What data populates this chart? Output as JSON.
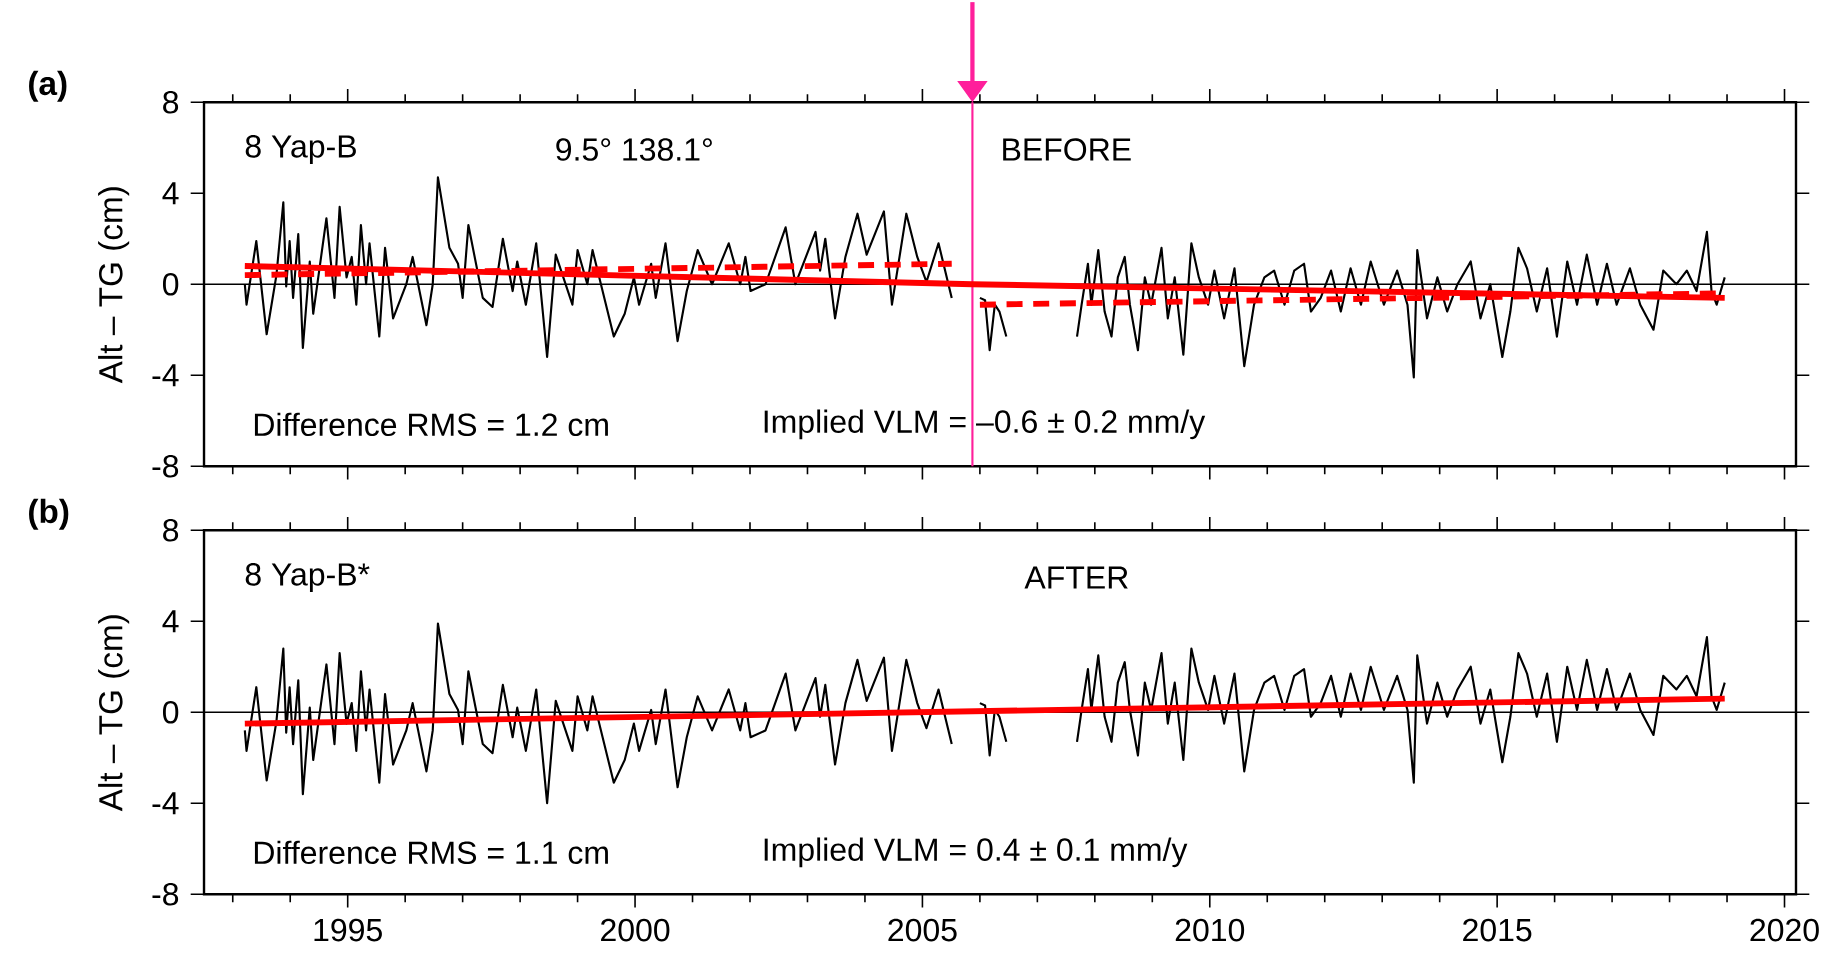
{
  "chart_data": [
    {
      "type": "line",
      "title": "(a)",
      "ylabel": "Alt – TG (cm)",
      "xlim": [
        1992.5,
        2020.2
      ],
      "ylim": [
        -8,
        8
      ],
      "tick_labels": "y",
      "marker": "none",
      "xticks": [
        {
          "value": 1993,
          "label": null
        },
        {
          "value": 1994,
          "label": null
        },
        1995,
        {
          "value": 1996,
          "label": null
        },
        {
          "value": 1997,
          "label": null
        },
        {
          "value": 1998,
          "label": null
        },
        {
          "value": 1999,
          "label": null
        },
        2000,
        {
          "value": 2001,
          "label": null
        },
        {
          "value": 2002,
          "label": null
        },
        {
          "value": 2003,
          "label": null
        },
        {
          "value": 2004,
          "label": null
        },
        2005,
        {
          "value": 2006,
          "label": null
        },
        {
          "value": 2007,
          "label": null
        },
        {
          "value": 2008,
          "label": null
        },
        {
          "value": 2009,
          "label": null
        },
        2010,
        {
          "value": 2011,
          "label": null
        },
        {
          "value": 2012,
          "label": null
        },
        {
          "value": 2013,
          "label": null
        },
        {
          "value": 2014,
          "label": null
        },
        2015,
        {
          "value": 2016,
          "label": null
        },
        {
          "value": 2017,
          "label": null
        },
        {
          "value": 2018,
          "label": null
        },
        {
          "value": 2019,
          "label": null
        },
        2020
      ],
      "yticks": [
        -8,
        -4,
        0,
        4,
        8
      ],
      "annotations": [
        "8 Yap-B",
        "9.5°  138.1°",
        "BEFORE",
        "Difference RMS =  1.2 cm",
        "Implied VLM = –0.6 ± 0.2 mm/y"
      ],
      "ref_lines": [
        {
          "axis": "y",
          "value": 0,
          "color": "#000000"
        },
        {
          "axis": "x",
          "value": 2005.87,
          "color": "#ff1f9b"
        }
      ],
      "series": [
        {
          "type": "line",
          "color": "#000000",
          "line_style": "solid",
          "x": [
            1993.21,
            1993.24,
            1993.41,
            1993.59,
            1993.76,
            1993.88,
            1993.93,
            1993.99,
            1994.05,
            1994.14,
            1994.22,
            1994.34,
            1994.4,
            1994.63,
            1994.77,
            1994.86,
            1994.98,
            1995.07,
            1995.15,
            1995.23,
            1995.32,
            1995.38,
            1995.55,
            1995.65,
            1995.79,
            1996.02,
            1996.13,
            1996.37,
            1996.48,
            1996.57,
            1996.77,
            1996.92,
            1997.0,
            1997.1,
            1997.35,
            1997.52,
            1997.7,
            1997.87,
            1997.95,
            1998.1,
            1998.28,
            1998.47,
            1998.62,
            1998.91,
            1999.0,
            1999.17,
            1999.26,
            1999.63,
            1999.82,
            1999.98,
            2000.07,
            2000.28,
            2000.36,
            2000.53,
            2000.74,
            2000.9,
            2001.09,
            2001.34,
            2001.63,
            2001.83,
            2001.92,
            2002.01,
            2002.27,
            2002.62,
            2002.79,
            2003.14,
            2003.22,
            2003.31,
            2003.48,
            2003.66,
            2003.87,
            2004.03,
            2004.33,
            2004.47,
            2004.72,
            2004.91,
            2005.07,
            2005.28,
            2005.51,
            2005.75,
            2006.0,
            2006.09,
            2006.17,
            2006.26,
            2006.34,
            2006.46,
            2007.0,
            2007.69,
            2007.77,
            2007.88,
            2007.94,
            2008.06,
            2008.17,
            2008.29,
            2008.4,
            2008.52,
            2008.61,
            2008.75,
            2008.87,
            2008.98,
            2009.16,
            2009.27,
            2009.39,
            2009.54,
            2009.68,
            2009.81,
            2009.97,
            2010.08,
            2010.25,
            2010.43,
            2010.6,
            2010.77,
            2010.95,
            2011.12,
            2011.3,
            2011.47,
            2011.64,
            2011.76,
            2011.93,
            2012.11,
            2012.28,
            2012.45,
            2012.63,
            2012.8,
            2013.03,
            2013.26,
            2013.44,
            2013.55,
            2013.61,
            2013.78,
            2013.96,
            2014.13,
            2014.31,
            2014.54,
            2014.71,
            2014.88,
            2015.09,
            2015.23,
            2015.37,
            2015.52,
            2015.69,
            2015.87,
            2016.04,
            2016.22,
            2016.39,
            2016.56,
            2016.74,
            2016.91,
            2017.08,
            2017.31,
            2017.49,
            2017.72,
            2017.89,
            2018.12,
            2018.3,
            2018.47,
            2018.65,
            2018.73,
            2018.82,
            2018.96
          ],
          "values": [
            0.0,
            -0.9,
            1.9,
            -2.2,
            0.4,
            3.6,
            -0.1,
            1.9,
            -0.6,
            2.2,
            -2.8,
            1.0,
            -1.3,
            2.9,
            -0.6,
            3.4,
            0.3,
            1.2,
            -0.9,
            2.6,
            0.0,
            1.8,
            -2.3,
            1.6,
            -1.5,
            0.0,
            1.2,
            -1.8,
            0.0,
            4.7,
            1.6,
            0.9,
            -0.6,
            2.6,
            -0.6,
            -1.0,
            2.0,
            -0.3,
            1.0,
            -0.9,
            1.8,
            -3.2,
            1.3,
            -0.9,
            1.5,
            0.0,
            1.5,
            -2.3,
            -1.3,
            0.3,
            -0.9,
            0.9,
            -0.6,
            1.8,
            -2.5,
            -0.3,
            1.5,
            0.0,
            1.8,
            0.0,
            1.2,
            -0.3,
            0.0,
            2.5,
            0.0,
            2.3,
            0.6,
            2.0,
            -1.5,
            1.2,
            3.1,
            1.3,
            3.2,
            -0.9,
            3.1,
            1.2,
            0.1,
            1.8,
            -0.6,
            null,
            -0.6,
            -0.7,
            -2.9,
            -0.9,
            -1.2,
            -2.3,
            null,
            -2.3,
            -0.9,
            0.9,
            -0.9,
            1.5,
            -1.2,
            -2.3,
            0.3,
            1.2,
            -0.9,
            -2.9,
            0.3,
            -0.9,
            1.6,
            -1.5,
            0.3,
            -3.1,
            1.8,
            0.3,
            -0.9,
            0.6,
            -1.5,
            0.7,
            -3.6,
            -0.9,
            0.3,
            0.6,
            -0.9,
            0.6,
            0.9,
            -1.2,
            -0.6,
            0.6,
            -1.2,
            0.7,
            -0.9,
            1.0,
            -0.9,
            0.6,
            -0.9,
            -4.1,
            1.5,
            -1.5,
            0.3,
            -1.2,
            0.0,
            1.0,
            -1.5,
            0.0,
            -3.2,
            -1.2,
            1.6,
            0.7,
            -1.2,
            0.7,
            -2.3,
            1.0,
            -0.9,
            1.3,
            -0.9,
            0.9,
            -0.9,
            0.7,
            -0.9,
            -2.0,
            0.6,
            0.0,
            0.6,
            -0.3,
            2.3,
            -0.3,
            -0.9,
            0.3
          ]
        },
        {
          "type": "line",
          "color": "#ff0000",
          "line_style": "solid",
          "x": [
            1993.21,
            2005.87,
            2018.96
          ],
          "values": [
            0.8,
            0.0,
            -0.6
          ]
        },
        {
          "type": "line",
          "color": "#ff0000",
          "line_style": "dashed",
          "x": [
            1993.21,
            2005.51,
            2005.75,
            2006.0,
            2018.96
          ],
          "values": [
            0.4,
            0.9,
            null,
            -0.9,
            -0.4
          ]
        }
      ]
    },
    {
      "type": "line",
      "title": "(b)",
      "ylabel": "Alt – TG (cm)",
      "xlim": [
        1992.5,
        2020.2
      ],
      "ylim": [
        -8,
        8
      ],
      "marker": "none",
      "xticks": [
        {
          "value": 1993,
          "label": null
        },
        {
          "value": 1994,
          "label": null
        },
        1995,
        {
          "value": 1996,
          "label": null
        },
        {
          "value": 1997,
          "label": null
        },
        {
          "value": 1998,
          "label": null
        },
        {
          "value": 1999,
          "label": null
        },
        2000,
        {
          "value": 2001,
          "label": null
        },
        {
          "value": 2002,
          "label": null
        },
        {
          "value": 2003,
          "label": null
        },
        {
          "value": 2004,
          "label": null
        },
        2005,
        {
          "value": 2006,
          "label": null
        },
        {
          "value": 2007,
          "label": null
        },
        {
          "value": 2008,
          "label": null
        },
        {
          "value": 2009,
          "label": null
        },
        2010,
        {
          "value": 2011,
          "label": null
        },
        {
          "value": 2012,
          "label": null
        },
        {
          "value": 2013,
          "label": null
        },
        {
          "value": 2014,
          "label": null
        },
        2015,
        {
          "value": 2016,
          "label": null
        },
        {
          "value": 2017,
          "label": null
        },
        {
          "value": 2018,
          "label": null
        },
        {
          "value": 2019,
          "label": null
        },
        2020
      ],
      "yticks": [
        -8,
        -4,
        0,
        4,
        8
      ],
      "annotations": [
        "8 Yap-B*",
        "AFTER",
        "Difference RMS =  1.1 cm",
        "Implied VLM =  0.4 ± 0.1 mm/y"
      ],
      "ref_lines": [
        {
          "axis": "y",
          "value": 0,
          "color": "#000000"
        }
      ],
      "series": [
        {
          "type": "line",
          "color": "#000000",
          "line_style": "solid",
          "x": [
            1993.21,
            1993.24,
            1993.41,
            1993.59,
            1993.76,
            1993.88,
            1993.93,
            1993.99,
            1994.05,
            1994.14,
            1994.22,
            1994.34,
            1994.4,
            1994.63,
            1994.77,
            1994.86,
            1994.98,
            1995.07,
            1995.15,
            1995.23,
            1995.32,
            1995.38,
            1995.55,
            1995.65,
            1995.79,
            1996.02,
            1996.13,
            1996.37,
            1996.48,
            1996.57,
            1996.77,
            1996.92,
            1997.0,
            1997.1,
            1997.35,
            1997.52,
            1997.7,
            1997.87,
            1997.95,
            1998.1,
            1998.28,
            1998.47,
            1998.62,
            1998.91,
            1999.0,
            1999.17,
            1999.26,
            1999.63,
            1999.82,
            1999.98,
            2000.07,
            2000.28,
            2000.36,
            2000.53,
            2000.74,
            2000.9,
            2001.09,
            2001.34,
            2001.63,
            2001.83,
            2001.92,
            2002.01,
            2002.27,
            2002.62,
            2002.79,
            2003.14,
            2003.22,
            2003.31,
            2003.48,
            2003.66,
            2003.87,
            2004.03,
            2004.33,
            2004.47,
            2004.72,
            2004.91,
            2005.07,
            2005.28,
            2005.51,
            2005.75,
            2006.0,
            2006.09,
            2006.17,
            2006.26,
            2006.34,
            2006.46,
            2007.0,
            2007.69,
            2007.77,
            2007.88,
            2007.94,
            2008.06,
            2008.17,
            2008.29,
            2008.4,
            2008.52,
            2008.61,
            2008.75,
            2008.87,
            2008.98,
            2009.16,
            2009.27,
            2009.39,
            2009.54,
            2009.68,
            2009.81,
            2009.97,
            2010.08,
            2010.25,
            2010.43,
            2010.6,
            2010.77,
            2010.95,
            2011.12,
            2011.3,
            2011.47,
            2011.64,
            2011.76,
            2011.93,
            2012.11,
            2012.28,
            2012.45,
            2012.63,
            2012.8,
            2013.03,
            2013.26,
            2013.44,
            2013.55,
            2013.61,
            2013.78,
            2013.96,
            2014.13,
            2014.31,
            2014.54,
            2014.71,
            2014.88,
            2015.09,
            2015.23,
            2015.37,
            2015.52,
            2015.69,
            2015.87,
            2016.04,
            2016.22,
            2016.39,
            2016.56,
            2016.74,
            2016.91,
            2017.08,
            2017.31,
            2017.49,
            2017.72,
            2017.89,
            2018.12,
            2018.3,
            2018.47,
            2018.65,
            2018.73,
            2018.82,
            2018.96
          ],
          "values": [
            -0.8,
            -1.7,
            1.1,
            -3.0,
            -0.4,
            2.8,
            -0.9,
            1.1,
            -1.4,
            1.4,
            -3.6,
            0.2,
            -2.1,
            2.1,
            -1.4,
            2.6,
            -0.5,
            0.4,
            -1.7,
            1.8,
            -0.8,
            1.0,
            -3.1,
            0.8,
            -2.3,
            -0.8,
            0.4,
            -2.6,
            -0.8,
            3.9,
            0.8,
            0.1,
            -1.4,
            1.8,
            -1.4,
            -1.8,
            1.2,
            -1.1,
            0.2,
            -1.7,
            1.0,
            -4.0,
            0.5,
            -1.7,
            0.7,
            -0.8,
            0.7,
            -3.1,
            -2.1,
            -0.5,
            -1.7,
            0.1,
            -1.4,
            1.0,
            -3.3,
            -1.1,
            0.7,
            -0.8,
            1.0,
            -0.8,
            0.4,
            -1.1,
            -0.8,
            1.7,
            -0.8,
            1.5,
            -0.2,
            1.2,
            -2.3,
            0.4,
            2.3,
            0.5,
            2.4,
            -1.7,
            2.3,
            0.4,
            -0.7,
            1.0,
            -1.4,
            null,
            0.4,
            0.3,
            -1.9,
            0.1,
            -0.2,
            -1.3,
            null,
            -1.3,
            0.1,
            1.9,
            0.1,
            2.5,
            -0.2,
            -1.3,
            1.3,
            2.2,
            0.1,
            -1.9,
            1.3,
            0.1,
            2.6,
            -0.5,
            1.3,
            -2.1,
            2.8,
            1.3,
            0.1,
            1.6,
            -0.5,
            1.7,
            -2.6,
            0.1,
            1.3,
            1.6,
            0.1,
            1.6,
            1.9,
            -0.2,
            0.4,
            1.6,
            -0.2,
            1.7,
            0.1,
            2.0,
            0.1,
            1.6,
            0.1,
            -3.1,
            2.5,
            -0.5,
            1.3,
            -0.2,
            1.0,
            2.0,
            -0.5,
            1.0,
            -2.2,
            -0.2,
            2.6,
            1.7,
            -0.2,
            1.7,
            -1.3,
            2.0,
            0.1,
            2.3,
            0.1,
            1.9,
            0.1,
            1.7,
            0.1,
            -1.0,
            1.6,
            1.0,
            1.6,
            0.7,
            3.3,
            0.7,
            0.1,
            1.3
          ]
        },
        {
          "type": "line",
          "color": "#ff0000",
          "line_style": "solid",
          "x": [
            1993.21,
            2018.96
          ],
          "values": [
            -0.5,
            0.6
          ]
        }
      ]
    }
  ]
}
